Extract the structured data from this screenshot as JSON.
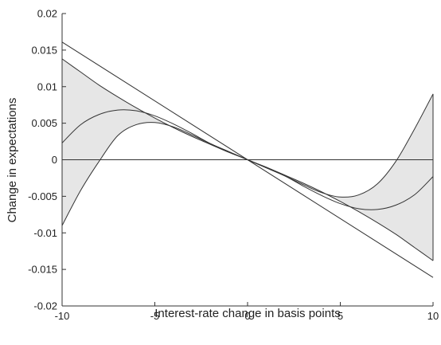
{
  "chart_data": {
    "type": "line",
    "title": "",
    "xlabel": "Interest-rate change in basis points",
    "ylabel": "Change in expectations",
    "xlim": [
      -10,
      10
    ],
    "ylim": [
      -0.02,
      0.02
    ],
    "x_ticks": [
      -10,
      -5,
      0,
      5,
      10
    ],
    "y_ticks": [
      0.02,
      0.015,
      0.01,
      0.005,
      0,
      -0.005,
      -0.01,
      -0.015,
      -0.02
    ],
    "x_tick_labels": [
      "-10",
      "-5",
      "0",
      "5",
      "10"
    ],
    "y_tick_labels": [
      "0.02",
      "0.015",
      "0.01",
      "0.005",
      "0",
      "-0.005",
      "-0.01",
      "-0.015",
      "-0.02"
    ],
    "grid": false,
    "x": [
      -10,
      -9,
      -8,
      -7,
      -6,
      -5,
      -4,
      -3,
      -2,
      -1,
      0,
      1,
      2,
      3,
      4,
      5,
      6,
      7,
      8,
      9,
      10
    ],
    "series": [
      {
        "role": "linear",
        "values": [
          0.0161,
          0.0145,
          0.0129,
          0.0113,
          0.0097,
          0.0081,
          0.0064,
          0.0048,
          0.0032,
          0.0016,
          0,
          -0.0016,
          -0.0032,
          -0.0048,
          -0.0064,
          -0.0081,
          -0.0097,
          -0.0113,
          -0.0129,
          -0.0145,
          -0.0161
        ]
      },
      {
        "role": "upper_band",
        "values": [
          0.0138,
          0.012,
          0.0102,
          0.0086,
          0.0071,
          0.0057,
          0.0044,
          0.0032,
          0.0021,
          0.001,
          0,
          -0.0011,
          -0.0022,
          -0.0034,
          -0.0045,
          -0.0051,
          -0.0048,
          -0.0033,
          -0.0002,
          0.0042,
          0.009
        ]
      },
      {
        "role": "point_estimate",
        "values": [
          0.0023,
          0.0048,
          0.0062,
          0.0068,
          0.0067,
          0.006,
          0.0049,
          0.0036,
          0.0022,
          0.0011,
          0,
          -0.0011,
          -0.0022,
          -0.0036,
          -0.0049,
          -0.006,
          -0.0067,
          -0.0068,
          -0.0062,
          -0.0048,
          -0.0023
        ]
      },
      {
        "role": "lower_band",
        "values": [
          -0.009,
          -0.0042,
          -0.0002,
          0.0033,
          0.0048,
          0.0051,
          0.0045,
          0.0034,
          0.0022,
          0.0011,
          0,
          -0.001,
          -0.0021,
          -0.0032,
          -0.0044,
          -0.0057,
          -0.0071,
          -0.0086,
          -0.0102,
          -0.012,
          -0.0138
        ]
      }
    ],
    "band_fill": "#e6e6e6",
    "line_color": "#333333"
  }
}
